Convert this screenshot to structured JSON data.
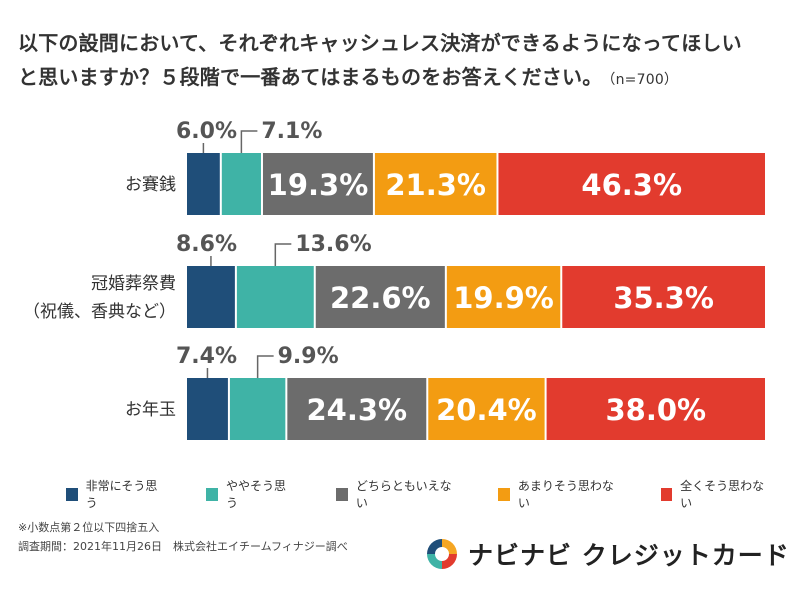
{
  "header": {
    "title_line1": "以下の設問において、それぞれキャッシュレス決済ができるようになってほしい",
    "title_line2": "と思いますか？５段階で一番あてはまるものをお答えください。",
    "sample": "（n=700）"
  },
  "chart_data": {
    "type": "bar",
    "orientation": "horizontal",
    "stacked": true,
    "normalized_percent": true,
    "categories": [
      {
        "lines": [
          "お賽銭"
        ]
      },
      {
        "lines": [
          "冠婚葬祭費",
          "（祝儀、香典など）"
        ]
      },
      {
        "lines": [
          "お年玉"
        ]
      }
    ],
    "series": [
      {
        "name": "非常にそう思う",
        "color": "#1f4e79",
        "values": [
          6.0,
          8.6,
          7.4
        ],
        "labels": [
          "6.0%",
          "8.6%",
          "7.4%"
        ],
        "label_position": "above"
      },
      {
        "name": "ややそう思う",
        "color": "#3fb3a6",
        "values": [
          7.1,
          13.6,
          9.9
        ],
        "labels": [
          "7.1%",
          "13.6%",
          "9.9%"
        ],
        "label_position": "above"
      },
      {
        "name": "どちらともいえない",
        "color": "#6c6c6c",
        "values": [
          19.3,
          22.6,
          24.3
        ],
        "labels": [
          "19.3%",
          "22.6%",
          "24.3%"
        ],
        "label_position": "inside"
      },
      {
        "name": "あまりそう思わない",
        "color": "#f39c12",
        "values": [
          21.3,
          19.9,
          20.4
        ],
        "labels": [
          "21.3%",
          "19.9%",
          "20.4%"
        ],
        "label_position": "inside"
      },
      {
        "name": "全くそう思わない",
        "color": "#e23b2e",
        "values": [
          46.3,
          35.3,
          38.0
        ],
        "labels": [
          "46.3%",
          "35.3%",
          "38.0%"
        ],
        "label_position": "inside"
      }
    ],
    "xlim": [
      0,
      100
    ]
  },
  "notes": {
    "rounding": "※小数点第２位以下四捨五入",
    "survey": "調査期間：2021年11月26日　株式会社エイチームフィナジー調べ"
  },
  "brand": {
    "name": "ナビナビ クレジットカード",
    "logo_colors": [
      "#f5a623",
      "#e23b2e",
      "#3fb3a6",
      "#1f4e79"
    ]
  }
}
